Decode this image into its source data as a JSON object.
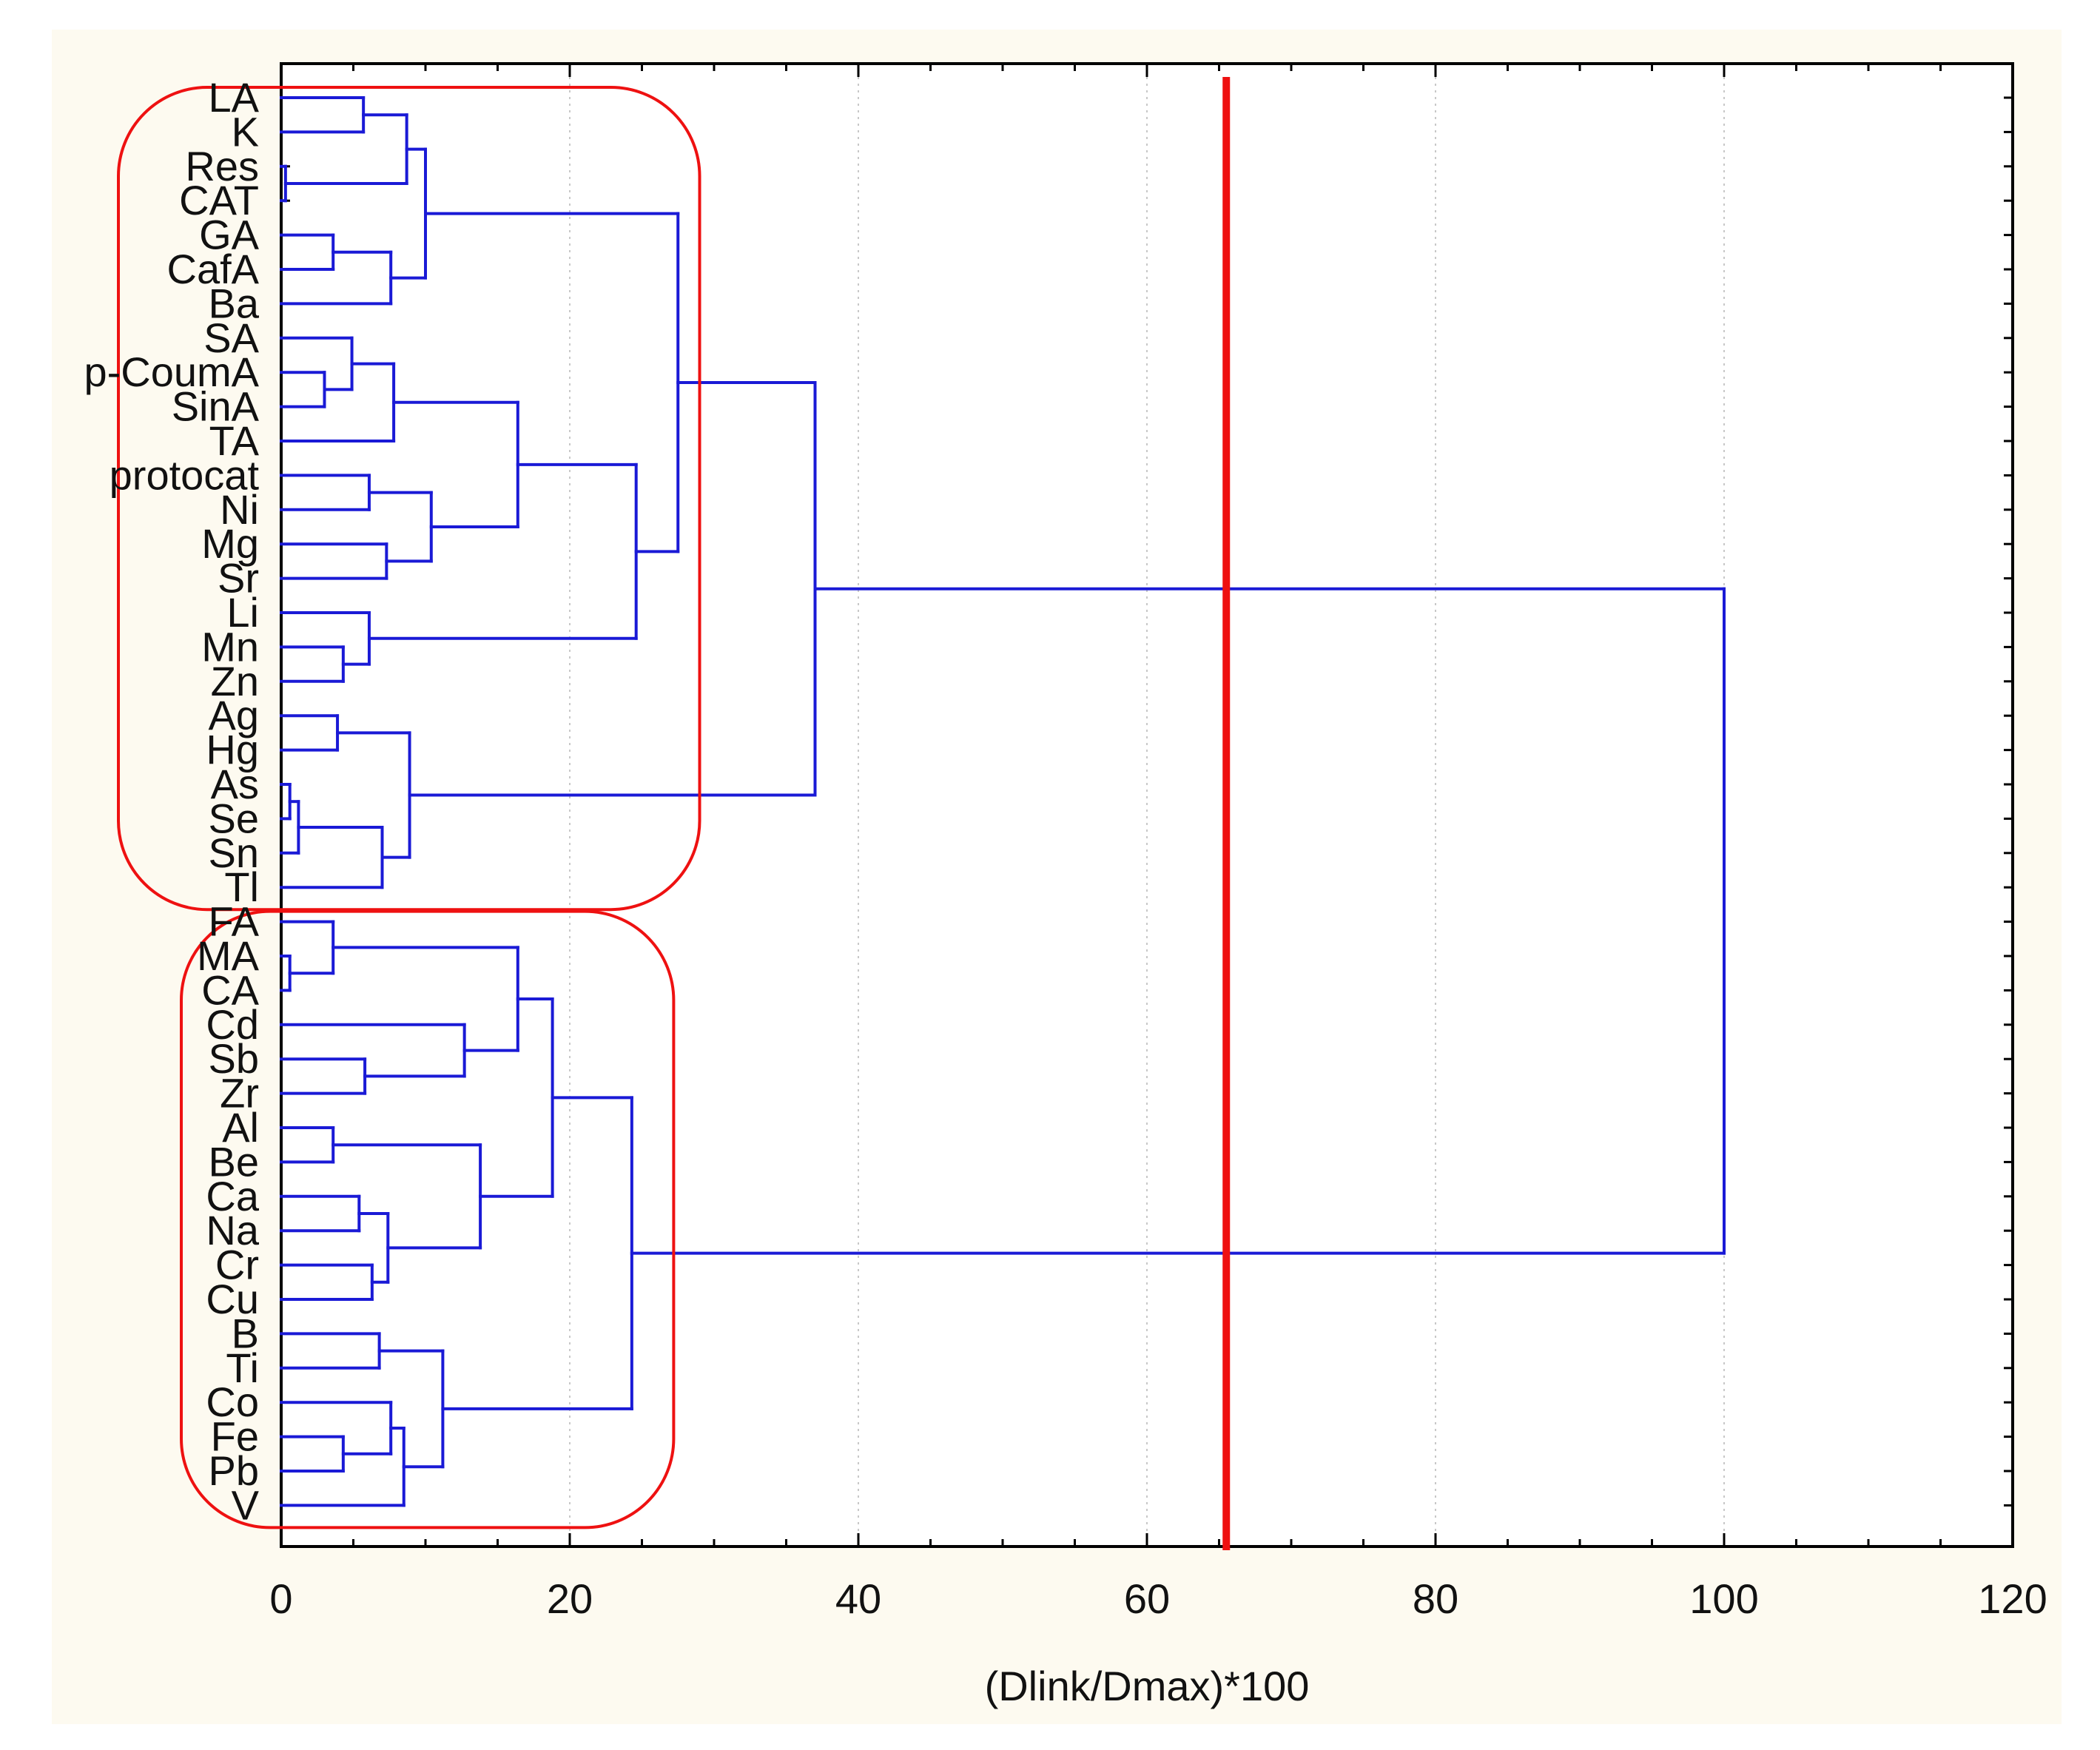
{
  "chart_data": {
    "type": "dendrogram",
    "orientation": "horizontal",
    "title": "",
    "xlabel": "(Dlink/Dmax)*100",
    "xlim": [
      0,
      120
    ],
    "xticks": [
      0,
      20,
      40,
      60,
      80,
      100,
      120
    ],
    "xtick_labels": [
      "0",
      "20",
      "40",
      "60",
      "80",
      "100",
      "120"
    ],
    "grid": "vertical dotted at major ticks",
    "leaves": [
      "LA",
      "K",
      "Res",
      "CAT",
      "GA",
      "CafA",
      "Ba",
      "SA",
      "p-CoumA",
      "SinA",
      "TA",
      "protocat",
      "Ni",
      "Mg",
      "Sr",
      "Li",
      "Mn",
      "Zn",
      "Ag",
      "Hg",
      "As",
      "Se",
      "Sn",
      "Tl",
      "FA",
      "MA",
      "CA",
      "Cd",
      "Sb",
      "Zr",
      "Al",
      "Be",
      "Ca",
      "Na",
      "Cr",
      "Cu",
      "B",
      "Ti",
      "Co",
      "Fe",
      "Pb",
      "V"
    ],
    "merges": [
      {
        "a": "LA",
        "b": "K",
        "height": 5.7
      },
      {
        "a": "Res",
        "b": "CAT",
        "height": 0.3
      },
      {
        "a": "[LA,K]",
        "b": "[Res,CAT]",
        "height": 8.7
      },
      {
        "a": "GA",
        "b": "CafA",
        "height": 3.6
      },
      {
        "a": "[GA,CafA]",
        "b": "Ba",
        "height": 7.6
      },
      {
        "a": "[LA..CAT]",
        "b": "[GA..Ba]",
        "height": 10.0
      },
      {
        "a": "p-CoumA",
        "b": "SinA",
        "height": 3.0
      },
      {
        "a": "SA",
        "b": "[p-CoumA,SinA]",
        "height": 4.9
      },
      {
        "a": "[SA..SinA]",
        "b": "TA",
        "height": 7.8
      },
      {
        "a": "protocat",
        "b": "Ni",
        "height": 6.1
      },
      {
        "a": "Mg",
        "b": "Sr",
        "height": 7.3
      },
      {
        "a": "[protocat,Ni]",
        "b": "[Mg,Sr]",
        "height": 10.4
      },
      {
        "a": "[SA..TA]",
        "b": "[protocat..Sr]",
        "height": 16.4
      },
      {
        "a": "Mn",
        "b": "Zn",
        "height": 4.3
      },
      {
        "a": "Li",
        "b": "[Mn,Zn]",
        "height": 6.1
      },
      {
        "a": "[SA..Sr]",
        "b": "[Li..Zn]",
        "height": 24.6
      },
      {
        "a": "[LA..Ba]",
        "b": "[SA..Zn]",
        "height": 27.5
      },
      {
        "a": "Ag",
        "b": "Hg",
        "height": 3.9
      },
      {
        "a": "As",
        "b": "Se",
        "height": 0.6
      },
      {
        "a": "[As,Se]",
        "b": "Sn",
        "height": 1.2
      },
      {
        "a": "[As..Sn]",
        "b": "Tl",
        "height": 7.0
      },
      {
        "a": "[Ag,Hg]",
        "b": "[As..Tl]",
        "height": 8.9
      },
      {
        "a": "[LA..Zn]",
        "b": "[Ag..Tl]",
        "height": 37.0
      },
      {
        "a": "MA",
        "b": "CA",
        "height": 0.6
      },
      {
        "a": "FA",
        "b": "[MA,CA]",
        "height": 3.6
      },
      {
        "a": "Sb",
        "b": "Zr",
        "height": 5.8
      },
      {
        "a": "Cd",
        "b": "[Sb,Zr]",
        "height": 12.7
      },
      {
        "a": "[FA..CA]",
        "b": "[Cd..Zr]",
        "height": 16.4
      },
      {
        "a": "Al",
        "b": "Be",
        "height": 3.6
      },
      {
        "a": "Ca",
        "b": "Na",
        "height": 5.4
      },
      {
        "a": "Cr",
        "b": "Cu",
        "height": 6.3
      },
      {
        "a": "[Ca,Na]",
        "b": "[Cr,Cu]",
        "height": 7.4
      },
      {
        "a": "[Al,Be]",
        "b": "[Ca..Cu]",
        "height": 13.8
      },
      {
        "a": "[FA..Zr]",
        "b": "[Al..Cu]",
        "height": 18.8
      },
      {
        "a": "B",
        "b": "Ti",
        "height": 6.8
      },
      {
        "a": "Fe",
        "b": "Pb",
        "height": 4.3
      },
      {
        "a": "Co",
        "b": "[Fe,Pb]",
        "height": 7.6
      },
      {
        "a": "[Co..Pb]",
        "b": "V",
        "height": 8.5
      },
      {
        "a": "[B,Ti]",
        "b": "[Co..V]",
        "height": 11.2
      },
      {
        "a": "[FA..Cu]",
        "b": "[B..V]",
        "height": 24.3
      },
      {
        "a": "[LA..Tl]",
        "b": "[FA..V]",
        "height": 100.0
      }
    ],
    "annotations": {
      "cut_line_x": 65.5,
      "cluster_boxes": [
        {
          "from": "LA",
          "to": "Tl",
          "extends_to_x": 29
        },
        {
          "from": "FA",
          "to": "V",
          "extends_to_x": 27.2
        }
      ]
    },
    "colors": {
      "background": "#fdfaf0",
      "plot_background": "#ffffff",
      "branch": "#1a1ad6",
      "cut_line": "#ee1111",
      "cluster_box": "#ee1111",
      "grid": "#c8c8c8"
    }
  }
}
